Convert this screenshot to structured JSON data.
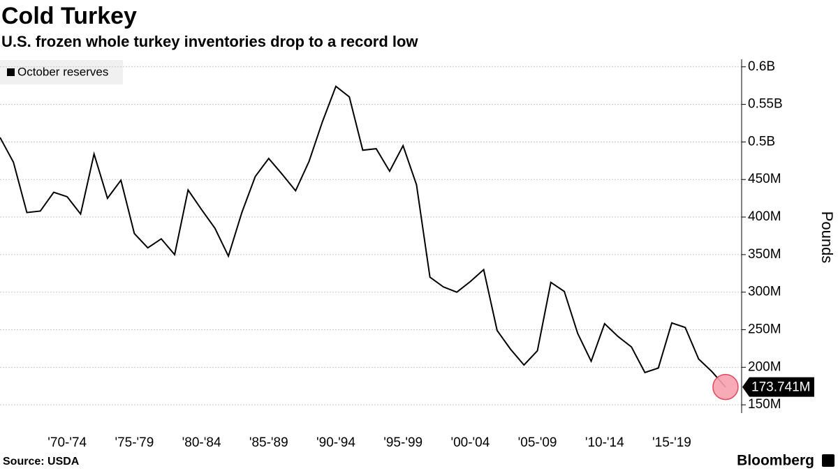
{
  "chart_data": {
    "type": "line",
    "title": "Cold Turkey",
    "subtitle": "U.S. frozen whole turkey inventories drop to a record low",
    "y_axis_label": "Pounds",
    "source": "Source: USDA",
    "brand": "Bloomberg",
    "x": [
      1967,
      1968,
      1969,
      1970,
      1971,
      1972,
      1973,
      1974,
      1975,
      1976,
      1977,
      1978,
      1979,
      1980,
      1981,
      1982,
      1983,
      1984,
      1985,
      1986,
      1987,
      1988,
      1989,
      1990,
      1991,
      1992,
      1993,
      1994,
      1995,
      1996,
      1997,
      1998,
      1999,
      2000,
      2001,
      2002,
      2003,
      2004,
      2005,
      2006,
      2007,
      2008,
      2009,
      2010,
      2011,
      2012,
      2013,
      2014,
      2015,
      2016,
      2017,
      2018,
      2019,
      2020,
      2021
    ],
    "series": [
      {
        "name": "October reserves",
        "color": "#000000",
        "values": [
          506000000,
          473000000,
          406000000,
          408000000,
          433000000,
          427000000,
          404000000,
          484000000,
          425000000,
          449000000,
          378000000,
          359000000,
          371000000,
          350000000,
          436000000,
          410000000,
          385000000,
          348000000,
          406000000,
          454000000,
          478000000,
          457000000,
          435000000,
          474000000,
          527000000,
          574000000,
          560000000,
          489000000,
          491000000,
          461000000,
          495000000,
          443000000,
          320000000,
          307000000,
          300000000,
          314000000,
          330000000,
          249000000,
          224000000,
          203000000,
          222000000,
          313000000,
          301000000,
          245000000,
          208000000,
          258000000,
          241000000,
          227000000,
          193000000,
          199000000,
          259000000,
          253000000,
          211000000,
          194000000,
          173741000
        ],
        "value_labels": [
          null,
          null,
          null,
          null,
          null,
          null,
          null,
          null,
          null,
          null,
          null,
          null,
          null,
          null,
          null,
          null,
          null,
          null,
          null,
          null,
          null,
          null,
          null,
          null,
          null,
          null,
          null,
          null,
          null,
          null,
          null,
          null,
          null,
          null,
          null,
          null,
          null,
          null,
          null,
          null,
          null,
          null,
          null,
          null,
          null,
          null,
          null,
          null,
          null,
          null,
          null,
          null,
          null,
          null,
          "173.741M"
        ]
      }
    ],
    "xlim": [
      1967,
      2022.2
    ],
    "xticks": [
      {
        "value": 1972,
        "label": "'70-'74"
      },
      {
        "value": 1977,
        "label": "'75-'79"
      },
      {
        "value": 1982,
        "label": "'80-'84"
      },
      {
        "value": 1987,
        "label": "'85-'89"
      },
      {
        "value": 1992,
        "label": "'90-'94"
      },
      {
        "value": 1997,
        "label": "'95-'99"
      },
      {
        "value": 2002,
        "label": "'00-'04"
      },
      {
        "value": 2007,
        "label": "'05-'09"
      },
      {
        "value": 2012,
        "label": "'10-'14"
      },
      {
        "value": 2017,
        "label": "'15-'19"
      }
    ],
    "ylim": [
      139000000,
      610000000
    ],
    "yticks": [
      {
        "value": 150000000,
        "label": "150M"
      },
      {
        "value": 200000000,
        "label": "200M"
      },
      {
        "value": 250000000,
        "label": "250M"
      },
      {
        "value": 300000000,
        "label": "300M"
      },
      {
        "value": 350000000,
        "label": "350M"
      },
      {
        "value": 400000000,
        "label": "400M"
      },
      {
        "value": 450000000,
        "label": "450M"
      },
      {
        "value": 500000000,
        "label": "0.5B"
      },
      {
        "value": 550000000,
        "label": "0.55B"
      },
      {
        "value": 600000000,
        "label": "0.6B"
      }
    ],
    "grid": true,
    "legend": "top-left"
  }
}
